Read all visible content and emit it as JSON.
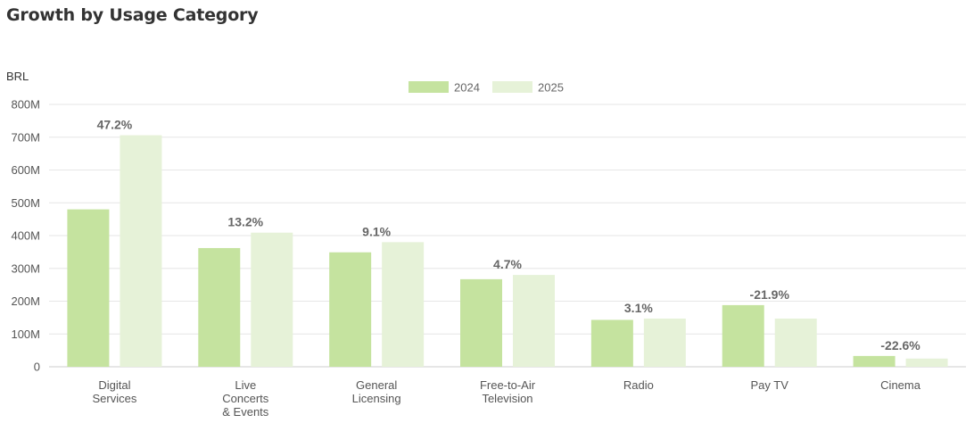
{
  "page": {
    "title": "Growth by Usage Category"
  },
  "chart_data": {
    "type": "bar",
    "unit_label": "BRL",
    "categories": [
      [
        "Digital",
        "Services"
      ],
      [
        "Live",
        "Concerts",
        "& Events"
      ],
      [
        "General",
        "Licensing"
      ],
      [
        "Free-to-Air",
        "Television"
      ],
      [
        "Radio"
      ],
      [
        "Pay TV"
      ],
      [
        "Cinema"
      ]
    ],
    "series": [
      {
        "name": "2024",
        "color": "#c5e39f",
        "values": [
          480,
          362,
          349,
          267,
          143,
          188,
          33
        ]
      },
      {
        "name": "2025",
        "color": "#e6f2d8",
        "values": [
          706,
          409,
          380,
          280,
          147,
          147,
          25
        ]
      }
    ],
    "growth_labels": [
      "47.2%",
      "13.2%",
      "9.1%",
      "4.7%",
      "3.1%",
      "-21.9%",
      "-22.6%"
    ],
    "ylim": [
      0,
      800
    ],
    "y_ticks": [
      {
        "value": 0,
        "label": "0"
      },
      {
        "value": 100,
        "label": "100M"
      },
      {
        "value": 200,
        "label": "200M"
      },
      {
        "value": 300,
        "label": "300M"
      },
      {
        "value": 400,
        "label": "400M"
      },
      {
        "value": 500,
        "label": "500M"
      },
      {
        "value": 600,
        "label": "600M"
      },
      {
        "value": 700,
        "label": "700M"
      },
      {
        "value": 800,
        "label": "800M"
      }
    ],
    "grid": true,
    "legend_position": "top-center"
  }
}
